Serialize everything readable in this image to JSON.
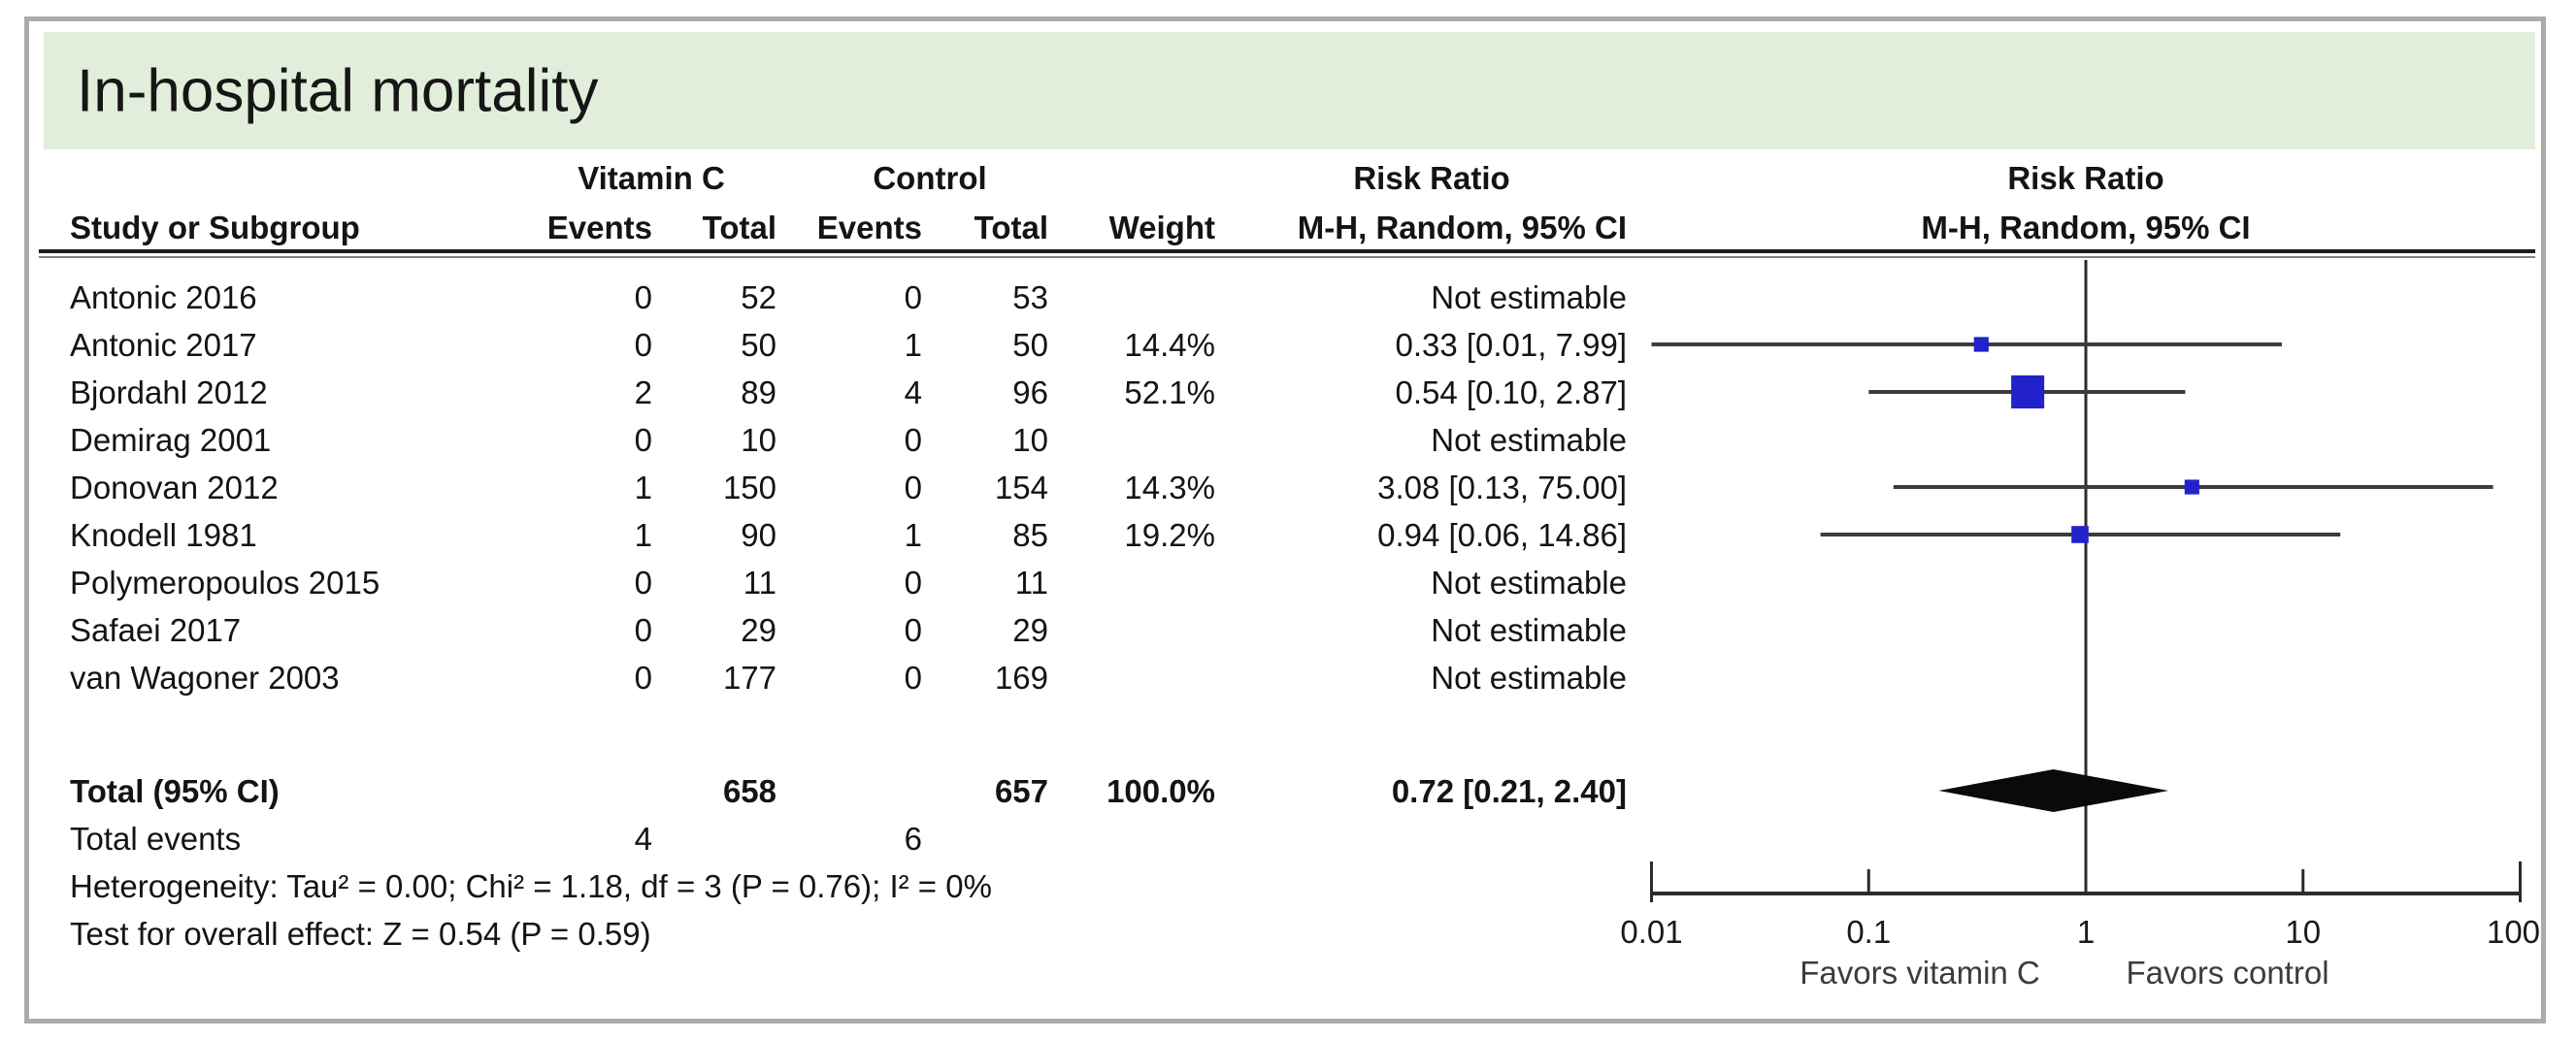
{
  "title": "In-hospital mortality",
  "colors": {
    "title_bg": "#e1eedb",
    "marker": "#2222cc",
    "ci_line": "#3c3c3c",
    "diamond": "#0a0a0a",
    "axis": "#2b2b2b",
    "frame": "#ababab",
    "text": "#141414",
    "favors_text": "#3c3c3c"
  },
  "header": {
    "study": "Study or Subgroup",
    "group1": "Vitamin C",
    "group2": "Control",
    "events": "Events",
    "total": "Total",
    "weight": "Weight",
    "risk_ratio": "Risk Ratio",
    "method": "M-H, Random, 95% CI"
  },
  "chart_data": {
    "type": "forest",
    "effect_measure": "Risk Ratio",
    "model": "M-H, Random, 95% CI",
    "x_axis": {
      "scale": "log",
      "min": 0.01,
      "max": 100,
      "ticks": [
        0.01,
        0.1,
        1,
        10,
        100
      ],
      "labels": [
        "0.01",
        "0.1",
        "1",
        "10",
        "100"
      ],
      "favors_left": "Favors vitamin C",
      "favors_right": "Favors control"
    },
    "studies": [
      {
        "name": "Antonic 2016",
        "vc_events": "0",
        "vc_total": "52",
        "c_events": "0",
        "c_total": "53",
        "weight": "",
        "ci_text": "Not estimable",
        "rr": null,
        "lo": null,
        "hi": null,
        "weight_pct": 0
      },
      {
        "name": "Antonic 2017",
        "vc_events": "0",
        "vc_total": "50",
        "c_events": "1",
        "c_total": "50",
        "weight": "14.4%",
        "ci_text": "0.33 [0.01, 7.99]",
        "rr": 0.33,
        "lo": 0.01,
        "hi": 7.99,
        "weight_pct": 14.4
      },
      {
        "name": "Bjordahl 2012",
        "vc_events": "2",
        "vc_total": "89",
        "c_events": "4",
        "c_total": "96",
        "weight": "52.1%",
        "ci_text": "0.54 [0.10, 2.87]",
        "rr": 0.54,
        "lo": 0.1,
        "hi": 2.87,
        "weight_pct": 52.1
      },
      {
        "name": "Demirag 2001",
        "vc_events": "0",
        "vc_total": "10",
        "c_events": "0",
        "c_total": "10",
        "weight": "",
        "ci_text": "Not estimable",
        "rr": null,
        "lo": null,
        "hi": null,
        "weight_pct": 0
      },
      {
        "name": "Donovan 2012",
        "vc_events": "1",
        "vc_total": "150",
        "c_events": "0",
        "c_total": "154",
        "weight": "14.3%",
        "ci_text": "3.08 [0.13, 75.00]",
        "rr": 3.08,
        "lo": 0.13,
        "hi": 75.0,
        "weight_pct": 14.3
      },
      {
        "name": "Knodell 1981",
        "vc_events": "1",
        "vc_total": "90",
        "c_events": "1",
        "c_total": "85",
        "weight": "19.2%",
        "ci_text": "0.94 [0.06, 14.86]",
        "rr": 0.94,
        "lo": 0.06,
        "hi": 14.86,
        "weight_pct": 19.2
      },
      {
        "name": "Polymeropoulos 2015",
        "vc_events": "0",
        "vc_total": "11",
        "c_events": "0",
        "c_total": "11",
        "weight": "",
        "ci_text": "Not estimable",
        "rr": null,
        "lo": null,
        "hi": null,
        "weight_pct": 0
      },
      {
        "name": "Safaei 2017",
        "vc_events": "0",
        "vc_total": "29",
        "c_events": "0",
        "c_total": "29",
        "weight": "",
        "ci_text": "Not estimable",
        "rr": null,
        "lo": null,
        "hi": null,
        "weight_pct": 0
      },
      {
        "name": "van Wagoner 2003",
        "vc_events": "0",
        "vc_total": "177",
        "c_events": "0",
        "c_total": "169",
        "weight": "",
        "ci_text": "Not estimable",
        "rr": null,
        "lo": null,
        "hi": null,
        "weight_pct": 0
      }
    ],
    "total": {
      "label": "Total (95% CI)",
      "vc_total": "658",
      "c_total": "657",
      "weight": "100.0%",
      "ci_text": "0.72 [0.21, 2.40]",
      "rr": 0.72,
      "lo": 0.21,
      "hi": 2.4
    },
    "total_events": {
      "label": "Total events",
      "vc": "4",
      "c": "6"
    },
    "heterogeneity": "Heterogeneity: Tau² = 0.00; Chi² = 1.18, df = 3 (P = 0.76); I² = 0%",
    "overall_effect": "Test for overall effect: Z = 0.54 (P = 0.59)"
  }
}
